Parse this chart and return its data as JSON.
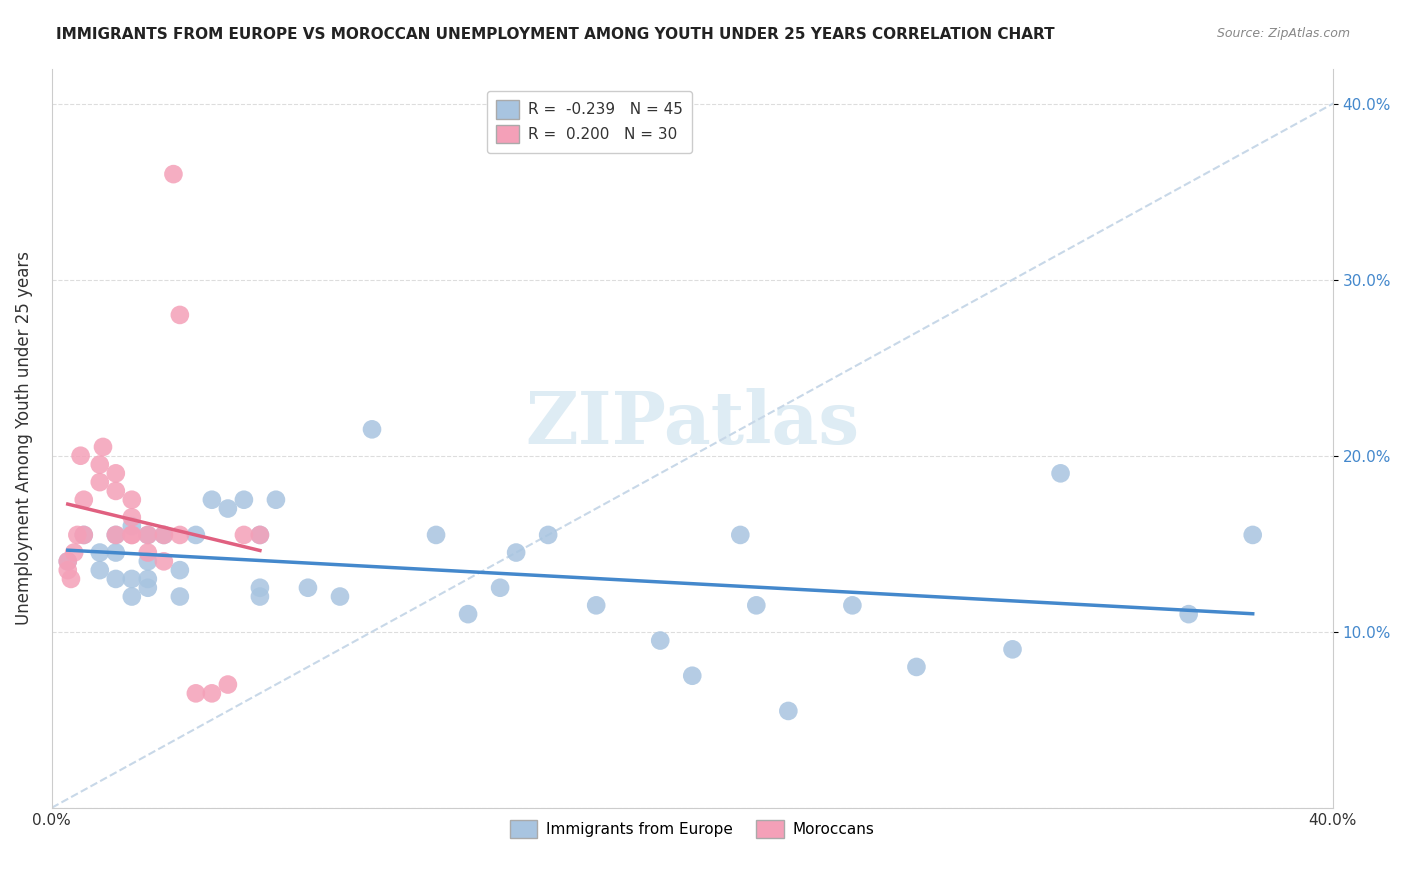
{
  "title": "IMMIGRANTS FROM EUROPE VS MOROCCAN UNEMPLOYMENT AMONG YOUTH UNDER 25 YEARS CORRELATION CHART",
  "source": "Source: ZipAtlas.com",
  "xlabel": "",
  "ylabel": "Unemployment Among Youth under 25 years",
  "xlim": [
    0.0,
    0.4
  ],
  "ylim": [
    0.0,
    0.42
  ],
  "ytick_labels": [
    "",
    "10.0%",
    "20.0%",
    "30.0%",
    "40.0%"
  ],
  "ytick_vals": [
    0.0,
    0.1,
    0.2,
    0.3,
    0.4
  ],
  "xtick_labels": [
    "0.0%",
    "",
    "",
    "",
    "",
    "40.0%"
  ],
  "xtick_vals": [
    0.0,
    0.08,
    0.16,
    0.24,
    0.32,
    0.4
  ],
  "blue_R": "-0.239",
  "blue_N": "45",
  "pink_R": "0.200",
  "pink_N": "30",
  "blue_color": "#a8c4e0",
  "pink_color": "#f4a0b8",
  "blue_line_color": "#4488cc",
  "pink_line_color": "#e06080",
  "dashed_line_color": "#c8d8e8",
  "watermark": "ZIPatlas",
  "blue_scatter_x": [
    0.005,
    0.01,
    0.015,
    0.015,
    0.02,
    0.02,
    0.02,
    0.025,
    0.025,
    0.025,
    0.03,
    0.03,
    0.03,
    0.03,
    0.035,
    0.04,
    0.04,
    0.045,
    0.05,
    0.055,
    0.06,
    0.065,
    0.065,
    0.065,
    0.07,
    0.08,
    0.09,
    0.1,
    0.12,
    0.13,
    0.14,
    0.145,
    0.155,
    0.17,
    0.19,
    0.2,
    0.215,
    0.22,
    0.23,
    0.25,
    0.27,
    0.3,
    0.315,
    0.355,
    0.375
  ],
  "blue_scatter_y": [
    0.14,
    0.155,
    0.135,
    0.145,
    0.13,
    0.145,
    0.155,
    0.12,
    0.13,
    0.16,
    0.125,
    0.13,
    0.14,
    0.155,
    0.155,
    0.12,
    0.135,
    0.155,
    0.175,
    0.17,
    0.175,
    0.12,
    0.125,
    0.155,
    0.175,
    0.125,
    0.12,
    0.215,
    0.155,
    0.11,
    0.125,
    0.145,
    0.155,
    0.115,
    0.095,
    0.075,
    0.155,
    0.115,
    0.055,
    0.115,
    0.08,
    0.09,
    0.19,
    0.11,
    0.155
  ],
  "pink_scatter_x": [
    0.005,
    0.005,
    0.006,
    0.007,
    0.008,
    0.009,
    0.01,
    0.01,
    0.015,
    0.015,
    0.016,
    0.02,
    0.02,
    0.02,
    0.025,
    0.025,
    0.025,
    0.025,
    0.03,
    0.03,
    0.035,
    0.035,
    0.038,
    0.04,
    0.04,
    0.045,
    0.05,
    0.055,
    0.06,
    0.065
  ],
  "pink_scatter_y": [
    0.135,
    0.14,
    0.13,
    0.145,
    0.155,
    0.2,
    0.155,
    0.175,
    0.185,
    0.195,
    0.205,
    0.155,
    0.18,
    0.19,
    0.155,
    0.165,
    0.175,
    0.155,
    0.145,
    0.155,
    0.14,
    0.155,
    0.36,
    0.28,
    0.155,
    0.065,
    0.065,
    0.07,
    0.155,
    0.155
  ]
}
